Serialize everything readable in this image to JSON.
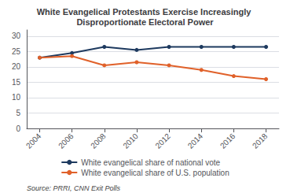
{
  "chart_data": {
    "type": "line",
    "title": "White Evangelical Protestants Exercise Increasingly Disproportionate Electoral Power",
    "source": "Source: PRRI, CNN Exit Polls",
    "x": [
      2004,
      2006,
      2008,
      2010,
      2012,
      2014,
      2016,
      2018
    ],
    "series": [
      {
        "name": "White evangelical share of national vote",
        "color": "#1e3a5f",
        "marker": "circle",
        "line_style": "solid",
        "values": [
          23.0,
          24.5,
          26.5,
          25.5,
          26.5,
          26.5,
          26.5,
          26.5
        ]
      },
      {
        "name": "White evangelical share of U.S. population",
        "color": "#e0612a",
        "marker": "circle",
        "line_style": "solid",
        "values": [
          23.0,
          23.5,
          20.5,
          21.5,
          20.5,
          19.0,
          17.0,
          16.0
        ]
      }
    ],
    "xlim": [
      2003.2,
      2018.8
    ],
    "xticks": [
      2004,
      2006,
      2008,
      2010,
      2012,
      2014,
      2016,
      2018
    ],
    "ylim": [
      0,
      32
    ],
    "yticks": [
      0,
      5,
      10,
      15,
      20,
      25,
      30
    ],
    "grid": true,
    "legend": "bottom"
  }
}
